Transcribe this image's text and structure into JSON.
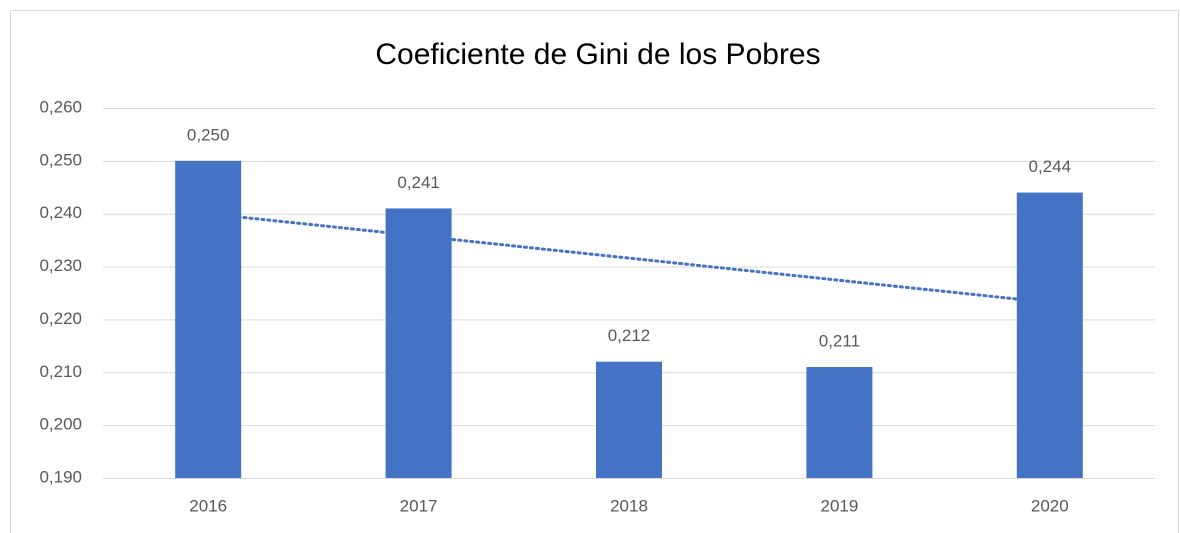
{
  "chart_data": {
    "type": "bar",
    "title": "Coeficiente de Gini de los Pobres",
    "categories": [
      "2016",
      "2017",
      "2018",
      "2019",
      "2020"
    ],
    "values": [
      0.25,
      0.241,
      0.212,
      0.211,
      0.244
    ],
    "value_labels": [
      "0,250",
      "0,241",
      "0,212",
      "0,211",
      "0,244"
    ],
    "color": "#4472c4",
    "ylim": [
      0.19,
      0.26
    ],
    "yticks": [
      {
        "value": 0.19,
        "label": "0,190"
      },
      {
        "value": 0.2,
        "label": "0,200"
      },
      {
        "value": 0.21,
        "label": "0,210"
      },
      {
        "value": 0.22,
        "label": "0,220"
      },
      {
        "value": 0.23,
        "label": "0,230"
      },
      {
        "value": 0.24,
        "label": "0,240"
      },
      {
        "value": 0.25,
        "label": "0,250"
      },
      {
        "value": 0.26,
        "label": "0,260"
      }
    ],
    "grid": true,
    "trendline": {
      "type": "linear",
      "color": "#4472c4"
    }
  }
}
